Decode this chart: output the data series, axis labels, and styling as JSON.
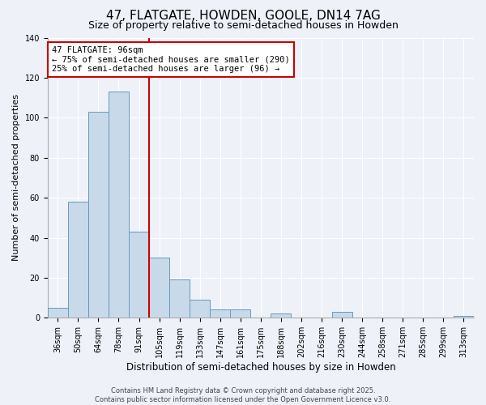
{
  "title1": "47, FLATGATE, HOWDEN, GOOLE, DN14 7AG",
  "title2": "Size of property relative to semi-detached houses in Howden",
  "xlabel": "Distribution of semi-detached houses by size in Howden",
  "ylabel": "Number of semi-detached properties",
  "categories": [
    "36sqm",
    "50sqm",
    "64sqm",
    "78sqm",
    "91sqm",
    "105sqm",
    "119sqm",
    "133sqm",
    "147sqm",
    "161sqm",
    "175sqm",
    "188sqm",
    "202sqm",
    "216sqm",
    "230sqm",
    "244sqm",
    "258sqm",
    "271sqm",
    "285sqm",
    "299sqm",
    "313sqm"
  ],
  "values": [
    5,
    58,
    103,
    113,
    43,
    30,
    19,
    9,
    4,
    4,
    0,
    2,
    0,
    0,
    3,
    0,
    0,
    0,
    0,
    0,
    1
  ],
  "bar_color": "#c8daea",
  "bar_edge_color": "#6699bb",
  "vline_x_idx": 4,
  "vline_color": "#cc0000",
  "annotation_title": "47 FLATGATE: 96sqm",
  "annotation_line1": "← 75% of semi-detached houses are smaller (290)",
  "annotation_line2": "25% of semi-detached houses are larger (96) →",
  "annotation_box_color": "#ffffff",
  "annotation_box_edge": "#cc0000",
  "ylim": [
    0,
    140
  ],
  "yticks": [
    0,
    20,
    40,
    60,
    80,
    100,
    120,
    140
  ],
  "footer1": "Contains HM Land Registry data © Crown copyright and database right 2025.",
  "footer2": "Contains public sector information licensed under the Open Government Licence v3.0.",
  "background_color": "#eef2f8",
  "grid_color": "#ffffff",
  "title1_fontsize": 11,
  "title2_fontsize": 9,
  "xlabel_fontsize": 8.5,
  "ylabel_fontsize": 8,
  "tick_fontsize": 7,
  "footer_fontsize": 6,
  "annot_fontsize": 7.5
}
